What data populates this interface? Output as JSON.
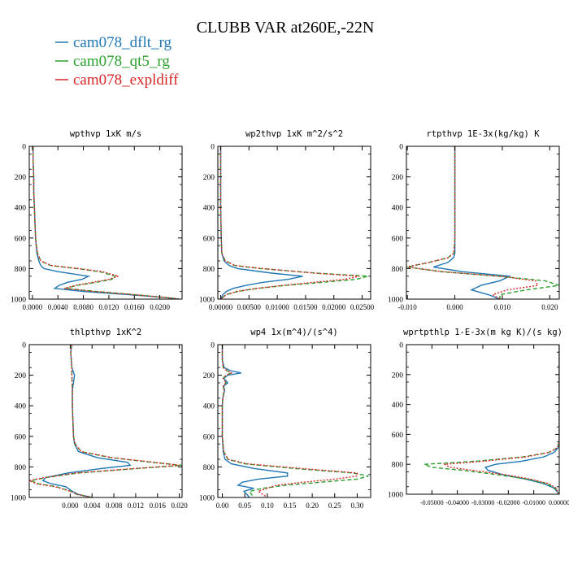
{
  "figure": {
    "title": "CLUBB VAR at260E,-22N",
    "legend": [
      {
        "name": "cam078_dflt_rg",
        "color": "#1f77b4",
        "dash": "solid"
      },
      {
        "name": "cam078_qt5_rg",
        "color": "#2ca02c",
        "dash": "dashed"
      },
      {
        "name": "cam078_expldiff",
        "color": "#d62728",
        "dash": "dotted"
      }
    ]
  },
  "chart_data": [
    {
      "type": "line",
      "title": "wpthvp   1xK m/s",
      "xlim": [
        -0.0005,
        0.0235
      ],
      "ylim": [
        0,
        1000
      ],
      "y_inverted": true,
      "xticks": [
        0,
        0.004,
        0.008,
        0.012,
        0.016,
        0.02
      ],
      "xtick_labels": [
        "0.0000",
        "0.0040",
        "0.0080",
        "0.0120",
        "0.0160",
        "0.0200"
      ],
      "yticks": [
        0,
        200,
        400,
        600,
        800,
        1000
      ],
      "y": [
        0,
        100,
        200,
        300,
        400,
        500,
        600,
        650,
        700,
        750,
        780,
        800,
        820,
        850,
        870,
        890,
        910,
        930,
        950,
        970,
        990,
        1000
      ],
      "series": [
        {
          "name": "cam078_dflt_rg",
          "x": [
            0.0001,
            0.0001,
            0.0002,
            0.0002,
            0.0003,
            0.0004,
            0.0005,
            0.0006,
            0.0007,
            0.001,
            0.0013,
            0.0018,
            0.004,
            0.0088,
            0.0078,
            0.0055,
            0.0042,
            0.0035,
            0.008,
            0.015,
            0.021,
            0.023
          ]
        },
        {
          "name": "cam078_qt5_rg",
          "x": [
            0.0001,
            0.0001,
            0.0002,
            0.0002,
            0.0003,
            0.0004,
            0.0005,
            0.0006,
            0.0008,
            0.0013,
            0.0028,
            0.007,
            0.0105,
            0.013,
            0.0125,
            0.01,
            0.007,
            0.0052,
            0.01,
            0.016,
            0.021,
            0.023
          ]
        },
        {
          "name": "cam078_expldiff",
          "x": [
            0.0001,
            0.0001,
            0.0002,
            0.0002,
            0.0003,
            0.0004,
            0.0005,
            0.0006,
            0.0008,
            0.0013,
            0.003,
            0.0072,
            0.011,
            0.0135,
            0.012,
            0.0095,
            0.0068,
            0.005,
            0.0098,
            0.0158,
            0.021,
            0.023
          ]
        }
      ]
    },
    {
      "type": "line",
      "title": "wp2thvp   1xK m^2/s^2",
      "xlim": [
        -0.0005,
        0.0265
      ],
      "ylim": [
        0,
        1000
      ],
      "y_inverted": true,
      "xticks": [
        0,
        0.005,
        0.01,
        0.015,
        0.02,
        0.025
      ],
      "xtick_labels": [
        "0.00000",
        "0.00500",
        "0.01000",
        "0.01500",
        "0.02000",
        "0.02500"
      ],
      "yticks": [
        0,
        200,
        400,
        600,
        800,
        1000
      ],
      "y": [
        0,
        200,
        400,
        600,
        700,
        750,
        780,
        800,
        830,
        850,
        870,
        890,
        910,
        930,
        950,
        970,
        990,
        1000
      ],
      "series": [
        {
          "name": "cam078_dflt_rg",
          "x": [
            0,
            0,
            0,
            0.0001,
            0.0002,
            0.0006,
            0.0015,
            0.003,
            0.009,
            0.0145,
            0.012,
            0.0075,
            0.0045,
            0.0022,
            0.001,
            0.0004,
            0.0001,
            0
          ]
        },
        {
          "name": "cam078_qt5_rg",
          "x": [
            0,
            0,
            0,
            0.0001,
            0.0002,
            0.0008,
            0.0025,
            0.007,
            0.017,
            0.026,
            0.024,
            0.018,
            0.0115,
            0.0065,
            0.003,
            0.001,
            0.0003,
            0
          ]
        },
        {
          "name": "cam078_expldiff",
          "x": [
            0,
            0,
            0,
            0.0001,
            0.0002,
            0.0008,
            0.0025,
            0.0075,
            0.0165,
            0.0245,
            0.022,
            0.0165,
            0.011,
            0.0063,
            0.0028,
            0.001,
            0.0003,
            0
          ]
        }
      ]
    },
    {
      "type": "line",
      "title": "rtpthvp   1E-3x(kg/kg) K",
      "xlim": [
        -0.0102,
        0.022
      ],
      "ylim": [
        0,
        1000
      ],
      "y_inverted": true,
      "xticks": [
        -0.01,
        0,
        0.01,
        0.02
      ],
      "xtick_labels": [
        "-0.010",
        "0.000",
        "0.010",
        "0.020"
      ],
      "yticks": [
        0,
        200,
        400,
        600,
        800,
        1000
      ],
      "y": [
        0,
        200,
        400,
        600,
        700,
        730,
        760,
        790,
        820,
        850,
        880,
        910,
        940,
        970,
        1000
      ],
      "series": [
        {
          "name": "cam078_dflt_rg",
          "x": [
            0,
            0,
            0,
            0,
            0,
            -0.0003,
            -0.0015,
            -0.0045,
            0.0015,
            0.0115,
            0.0095,
            0.0055,
            0.0035,
            0.007,
            0.0095
          ]
        },
        {
          "name": "cam078_qt5_rg",
          "x": [
            0,
            0,
            0,
            0,
            -0.0002,
            -0.0015,
            -0.0055,
            -0.01,
            -0.003,
            0.009,
            0.019,
            0.022,
            0.015,
            0.0095,
            0.0095
          ]
        },
        {
          "name": "cam078_expldiff",
          "x": [
            0,
            0,
            0,
            0,
            -0.0002,
            -0.0015,
            -0.0055,
            -0.0102,
            -0.0025,
            0.0095,
            0.017,
            0.0175,
            0.011,
            0.008,
            0.0095
          ]
        }
      ]
    },
    {
      "type": "line",
      "title": "thlpthvp   1xK^2",
      "xlim": [
        -0.0075,
        0.0205
      ],
      "ylim": [
        0,
        1000
      ],
      "y_inverted": true,
      "xticks": [
        0,
        0.004,
        0.008,
        0.012,
        0.016,
        0.02
      ],
      "xtick_labels": [
        "0.000",
        "0.004",
        "0.008",
        "0.012",
        "0.016",
        "0.020"
      ],
      "yticks": [
        0,
        200,
        400,
        600,
        800,
        1000
      ],
      "y": [
        0,
        50,
        100,
        150,
        200,
        300,
        400,
        500,
        600,
        650,
        700,
        740,
        770,
        790,
        810,
        840,
        870,
        890,
        910,
        930,
        960,
        980,
        1000
      ],
      "series": [
        {
          "name": "cam078_dflt_rg",
          "x": [
            0.0003,
            0.0001,
            0.0002,
            0.0003,
            0.0008,
            0.0004,
            0.0004,
            0.0005,
            0.0006,
            0.0008,
            0.0015,
            0.005,
            0.0105,
            0.011,
            0.0058,
            -0.0005,
            -0.0045,
            -0.005,
            -0.0035,
            -0.0008,
            0.0004,
            0.0015,
            0.004
          ]
        },
        {
          "name": "cam078_qt5_rg",
          "x": [
            0.0003,
            0.0001,
            0.0002,
            0.0003,
            0.0003,
            0.0004,
            0.0004,
            0.0005,
            0.0006,
            0.0009,
            0.002,
            0.0075,
            0.015,
            0.0205,
            0.0125,
            0.0015,
            -0.0045,
            -0.0072,
            -0.0058,
            -0.0025,
            0.0002,
            0.0012,
            0.004
          ]
        },
        {
          "name": "cam078_expldiff",
          "x": [
            0.0003,
            0.0001,
            0.0002,
            0.0003,
            0.0003,
            0.0004,
            0.0004,
            0.0005,
            0.0006,
            0.0009,
            0.002,
            0.0078,
            0.0155,
            0.02,
            0.0118,
            0.001,
            -0.0048,
            -0.0075,
            -0.0062,
            -0.0028,
            0.0001,
            0.0012,
            0.004
          ]
        }
      ]
    },
    {
      "type": "line",
      "title": "wp4   1x(m^4)/(s^4)",
      "xlim": [
        -0.01,
        0.33
      ],
      "ylim": [
        0,
        1000
      ],
      "y_inverted": true,
      "xticks": [
        0,
        0.05,
        0.1,
        0.15,
        0.2,
        0.25,
        0.3
      ],
      "xtick_labels": [
        "0.00",
        "0.05",
        "0.10",
        "0.15",
        "0.20",
        "0.25",
        "0.30"
      ],
      "yticks": [
        0,
        200,
        400,
        600,
        800,
        1000
      ],
      "y": [
        0,
        100,
        150,
        170,
        185,
        200,
        220,
        250,
        270,
        300,
        350,
        400,
        500,
        600,
        700,
        750,
        780,
        810,
        840,
        860,
        880,
        900,
        920,
        940,
        960,
        980,
        1000
      ],
      "series": [
        {
          "name": "cam078_dflt_rg",
          "x": [
            0,
            0,
            0.004,
            0.018,
            0.042,
            0.012,
            0.003,
            0.012,
            0.003,
            0.005,
            0.001,
            0,
            0,
            0,
            0.002,
            0.006,
            0.02,
            0.07,
            0.145,
            0.145,
            0.08,
            0.045,
            0.035,
            0.07,
            0.048,
            0.055,
            0.06
          ]
        },
        {
          "name": "cam078_qt5_rg",
          "x": [
            0,
            0,
            0.002,
            0.01,
            0.02,
            0.008,
            0.002,
            0.008,
            0.002,
            0.004,
            0.001,
            0,
            0,
            0,
            0.003,
            0.012,
            0.05,
            0.16,
            0.29,
            0.325,
            0.3,
            0.22,
            0.14,
            0.09,
            0.06,
            0.065,
            0.07
          ]
        },
        {
          "name": "cam078_expldiff",
          "x": [
            0,
            0,
            0.002,
            0.01,
            0.02,
            0.008,
            0.002,
            0.008,
            0.002,
            0.004,
            0.001,
            0,
            0,
            0,
            0.003,
            0.013,
            0.055,
            0.175,
            0.3,
            0.3,
            0.25,
            0.18,
            0.12,
            0.1,
            0.08,
            0.09,
            0.1
          ]
        }
      ]
    },
    {
      "type": "line",
      "title": "wprtpthlp   1-E-3x(m kg K)/(s kg)",
      "xlim": [
        -0.06,
        0.0
      ],
      "ylim": [
        0,
        1000
      ],
      "y_inverted": true,
      "xticks": [
        -0.05,
        -0.04,
        -0.03,
        -0.02,
        -0.01,
        0.0
      ],
      "xtick_labels": [
        "-0.05000",
        "-0.04000",
        "-0.03000",
        "-0.02000",
        "-0.01000",
        "0.00000"
      ],
      "yticks": [
        0,
        200,
        400,
        600,
        800,
        1000
      ],
      "y": [
        0,
        200,
        400,
        600,
        650,
        690,
        720,
        750,
        780,
        800,
        820,
        840,
        870,
        900,
        930,
        960,
        990,
        1000
      ],
      "series": [
        {
          "name": "cam078_dflt_rg",
          "x": [
            0,
            0,
            0,
            0,
            0,
            -0.0005,
            -0.002,
            -0.006,
            -0.015,
            -0.025,
            -0.029,
            -0.028,
            -0.022,
            -0.013,
            -0.006,
            -0.002,
            -0.0005,
            0
          ]
        },
        {
          "name": "cam078_qt5_rg",
          "x": [
            0,
            0,
            0,
            0,
            0,
            -0.0008,
            -0.004,
            -0.014,
            -0.033,
            -0.053,
            -0.05,
            -0.038,
            -0.024,
            -0.012,
            -0.005,
            -0.0015,
            -0.0005,
            0
          ]
        },
        {
          "name": "cam078_expldiff",
          "x": [
            0,
            0,
            0,
            0,
            0,
            -0.0008,
            -0.004,
            -0.013,
            -0.03,
            -0.045,
            -0.043,
            -0.034,
            -0.021,
            -0.011,
            -0.004,
            -0.0012,
            -0.0004,
            0
          ]
        }
      ]
    }
  ]
}
